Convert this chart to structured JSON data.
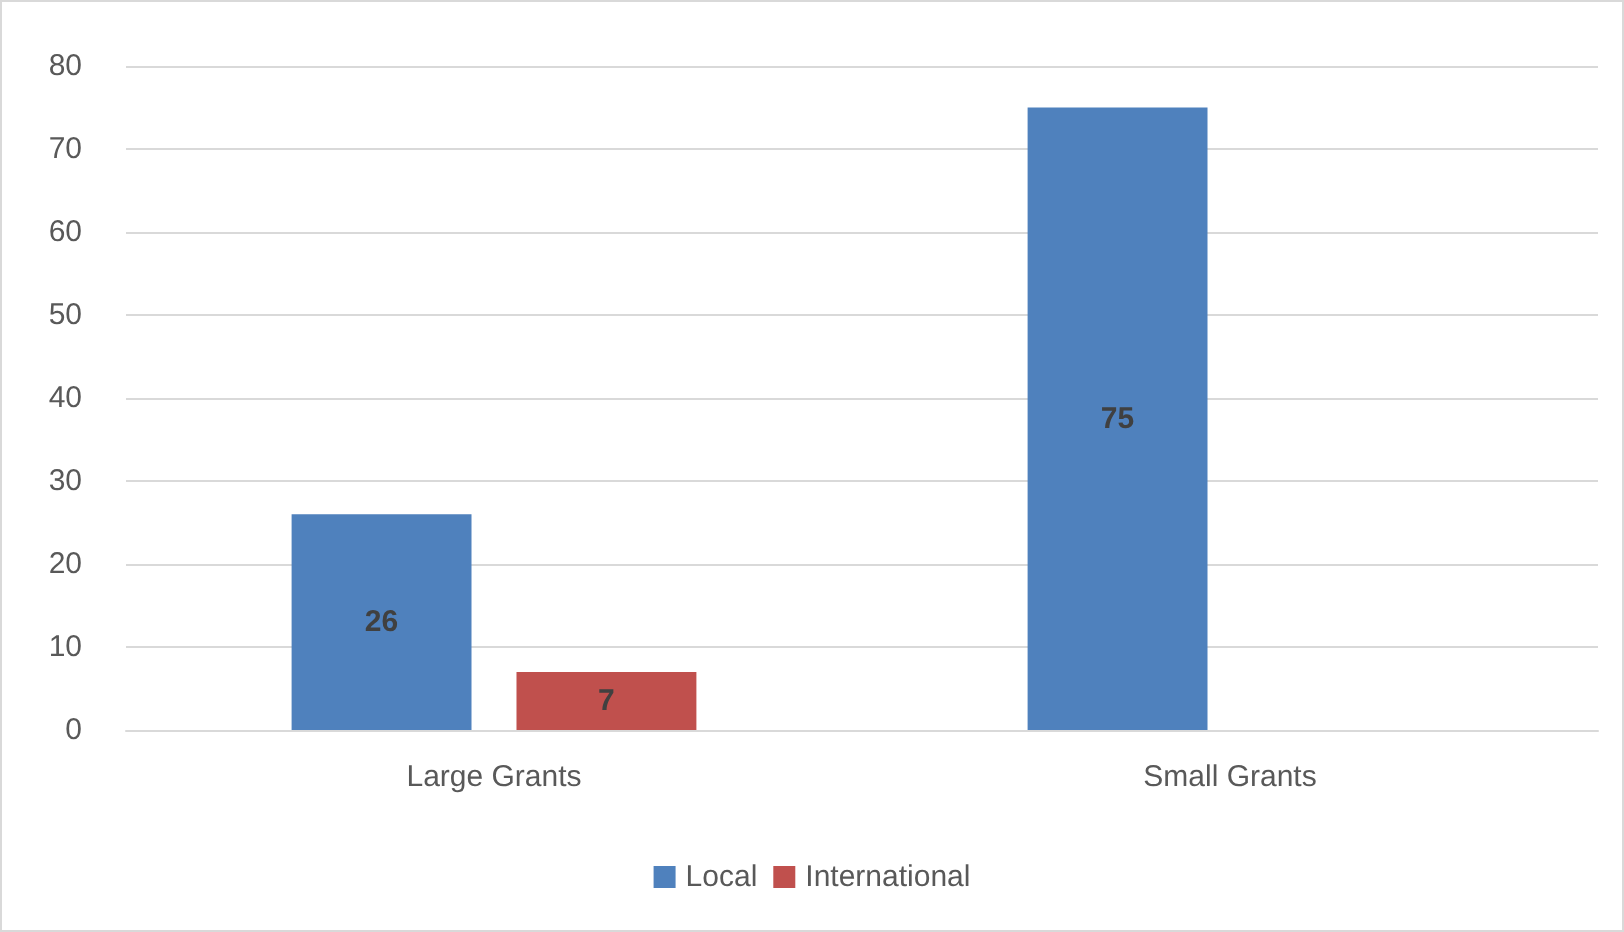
{
  "chart_data": {
    "type": "bar",
    "categories": [
      "Large Grants",
      "Small Grants"
    ],
    "series": [
      {
        "name": "Local",
        "color": "#4f81bd",
        "values": [
          26,
          75
        ]
      },
      {
        "name": "International",
        "color": "#c0504d",
        "values": [
          7,
          null
        ]
      }
    ],
    "ylim": [
      0,
      80
    ],
    "yticks": [
      0,
      10,
      20,
      30,
      40,
      50,
      60,
      70,
      80
    ],
    "grid": "y",
    "legend": "bottom",
    "data_labels": true
  }
}
